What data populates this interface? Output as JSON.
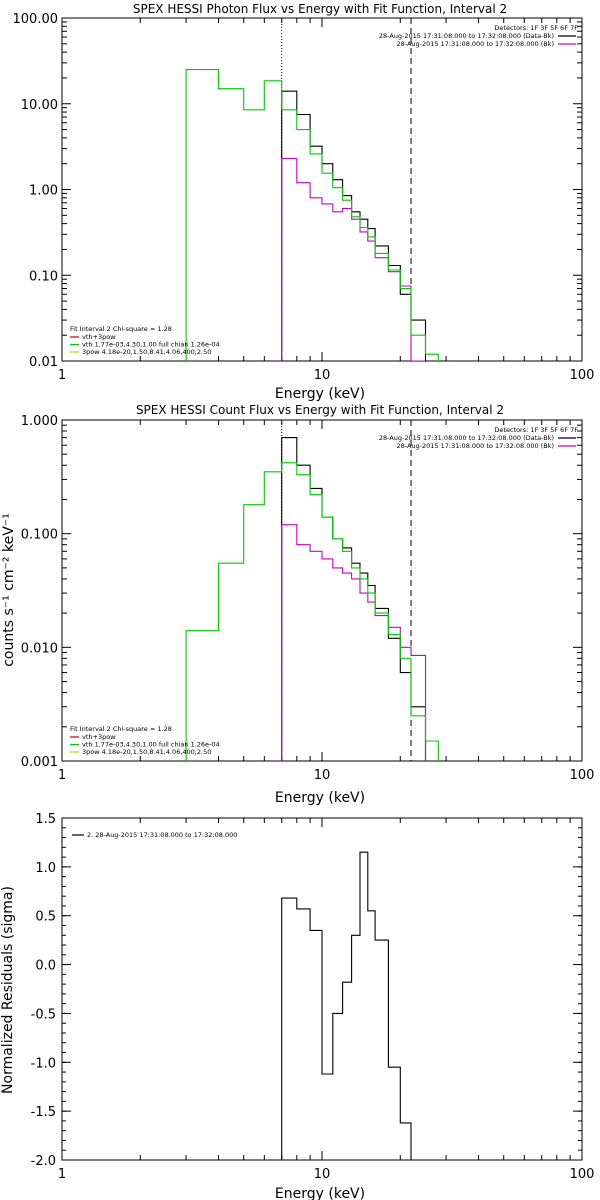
{
  "chart_data": [
    {
      "type": "line",
      "title": "SPEX HESSI Photon Flux vs Energy with Fit Function, Interval 2",
      "xlabel": "Energy (keV)",
      "ylabel": "",
      "xscale": "log",
      "yscale": "log",
      "xlim": [
        1,
        100
      ],
      "ylim": [
        0.01,
        100
      ],
      "xticks": [
        "1",
        "10",
        "100"
      ],
      "yticks": [
        "0.01",
        "0.10",
        "1.00",
        "10.00",
        "100.00"
      ],
      "vlines": {
        "dotted": 7,
        "dashed": 22
      },
      "legend_top": {
        "detectors": "Detectors: 1F 3F 5F 6F 7F",
        "lines": [
          {
            "text": "28-Aug-2015 17:31:08.000 to 17:32:08.000 (Data-Bk)",
            "color": "#000000"
          },
          {
            "text": "28-Aug-2015 17:31:08.000 to 17:32:08.000 (Bk)",
            "color": "#cc00cc"
          }
        ]
      },
      "legend_bottom": {
        "header": "Fit Interval 2   Chi-square = 1.28",
        "lines": [
          {
            "text": "vth+3pow",
            "color": "#cc0000"
          },
          {
            "text": "vth 1.77e-03,4.30,1.00  full chian 1.26e-04",
            "color": "#00cc00"
          },
          {
            "text": "3pow 4.18e-20,1.50,8.41,4.06,400,2.50",
            "color": "#cccc00"
          }
        ]
      },
      "edges": [
        3.0,
        4.0,
        5.0,
        6.0,
        7.0,
        8.0,
        9.0,
        10.0,
        11.0,
        12.0,
        13.0,
        14.0,
        15.0,
        16.0,
        18.0,
        20.0,
        22.0,
        25.0,
        28.0
      ],
      "series": [
        {
          "color": "#000000",
          "values": [
            null,
            null,
            null,
            null,
            14,
            7.5,
            3.2,
            2.0,
            1.3,
            0.85,
            0.55,
            0.45,
            0.35,
            0.22,
            0.13,
            0.06,
            0.03,
            null
          ]
        },
        {
          "color": "#cc00cc",
          "values": [
            null,
            null,
            null,
            null,
            2.3,
            1.2,
            0.8,
            0.68,
            0.55,
            0.6,
            0.45,
            0.32,
            0.25,
            0.16,
            0.11,
            0.075,
            0.01,
            null
          ]
        },
        {
          "color": "#00cc00",
          "values": [
            25,
            15,
            8.5,
            18.5,
            8.5,
            5.0,
            2.6,
            1.55,
            1.05,
            0.75,
            0.48,
            0.36,
            0.28,
            0.18,
            0.115,
            0.07,
            0.02,
            0.012
          ]
        }
      ]
    },
    {
      "type": "line",
      "title": "SPEX HESSI Count Flux vs Energy with Fit Function, Interval 2",
      "xlabel": "Energy (keV)",
      "ylabel": "counts s⁻¹ cm⁻² keV⁻¹",
      "xscale": "log",
      "yscale": "log",
      "xlim": [
        1,
        100
      ],
      "ylim": [
        0.001,
        1
      ],
      "xticks": [
        "1",
        "10",
        "100"
      ],
      "yticks": [
        "0.001",
        "0.010",
        "0.100",
        "1.000"
      ],
      "vlines": {
        "dotted": 7,
        "dashed": 22
      },
      "legend_top": {
        "detectors": "Detectors: 1F 3F 5F 6F 7F",
        "lines": [
          {
            "text": "28-Aug-2015 17:31:08.000 to 17:32:08.000 (Data-Bk)",
            "color": "#000000"
          },
          {
            "text": "28-Aug-2015 17:31:08.000 to 17:32:08.000 (Bk)",
            "color": "#cc00cc"
          }
        ]
      },
      "legend_bottom": {
        "header": "Fit Interval 2   Chi-square = 1.28",
        "lines": [
          {
            "text": "vth+3pow",
            "color": "#cc0000"
          },
          {
            "text": "vth 1.77e-03,4.30,1.00  full chian 1.26e-04",
            "color": "#00cc00"
          },
          {
            "text": "3pow 4.18e-20,1.50,8.41,4.06,400,2.50",
            "color": "#cccc00"
          }
        ]
      },
      "edges": [
        3.0,
        4.0,
        5.0,
        6.0,
        7.0,
        8.0,
        9.0,
        10.0,
        11.0,
        12.0,
        13.0,
        14.0,
        15.0,
        16.0,
        18.0,
        20.0,
        22.0,
        25.0,
        28.0
      ],
      "series": [
        {
          "color": "#000000",
          "values": [
            null,
            null,
            null,
            null,
            0.7,
            0.4,
            0.25,
            0.14,
            0.09,
            0.075,
            0.055,
            0.045,
            0.035,
            0.022,
            0.012,
            0.006,
            0.003,
            null
          ]
        },
        {
          "color": "#cc00cc",
          "values": [
            null,
            null,
            null,
            null,
            0.12,
            0.08,
            0.07,
            0.06,
            0.05,
            0.045,
            0.04,
            0.03,
            0.025,
            0.019,
            0.015,
            0.01,
            0.0085,
            null
          ]
        },
        {
          "color": "#00cc00",
          "values": [
            0.014,
            0.055,
            0.18,
            0.35,
            0.42,
            0.33,
            0.22,
            0.14,
            0.09,
            0.07,
            0.05,
            0.04,
            0.03,
            0.02,
            0.013,
            0.008,
            0.0025,
            0.0015
          ]
        }
      ]
    },
    {
      "type": "line",
      "title": "",
      "xlabel": "Energy (keV)",
      "ylabel": "Normalized Residuals (sigma)",
      "xscale": "log",
      "yscale": "linear",
      "xlim": [
        1,
        100
      ],
      "ylim": [
        -2.0,
        1.5
      ],
      "xticks": [
        "1",
        "10",
        "100"
      ],
      "yticks": [
        "-2.0",
        "-1.5",
        "-1.0",
        "-0.5",
        "0.0",
        "0.5",
        "1.0",
        "1.5"
      ],
      "legend_top": {
        "lines": [
          {
            "text": "2. 28-Aug-2015 17:31:08.000 to 17:32:08.000",
            "color": "#000000"
          }
        ]
      },
      "edges": [
        7.0,
        8.0,
        9.0,
        10.0,
        11.0,
        12.0,
        13.0,
        14.0,
        15.0,
        16.0,
        18.0,
        20.0,
        22.0
      ],
      "series": [
        {
          "color": "#000000",
          "values": [
            0.68,
            0.57,
            0.35,
            -1.12,
            -0.5,
            -0.18,
            0.3,
            1.15,
            0.55,
            0.25,
            -1.05,
            -1.62
          ]
        }
      ]
    }
  ]
}
